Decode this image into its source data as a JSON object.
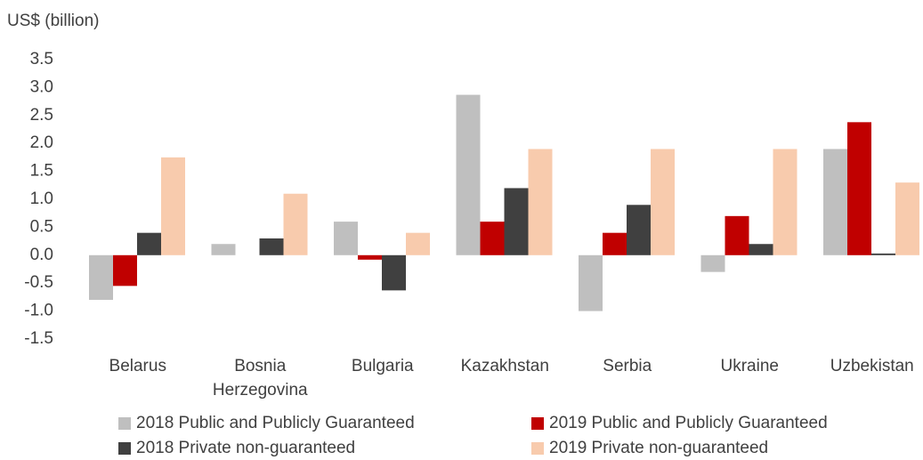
{
  "chart_data": {
    "type": "bar",
    "y_label": "US$ (billion)",
    "categories": [
      "Belarus",
      "Bosnia Herzegovina",
      "Bulgaria",
      "Kazakhstan",
      "Serbia",
      "Ukraine",
      "Uzbekistan"
    ],
    "series": [
      {
        "name": "2018 Public and Publicly Guaranteed",
        "color": "#bfbfbf",
        "values": [
          -0.8,
          0.2,
          0.6,
          2.87,
          -1.0,
          -0.3,
          1.9
        ]
      },
      {
        "name": "2019 Public and Publicly Guaranteed",
        "color": "#c00000",
        "values": [
          -0.55,
          0,
          -0.08,
          0.6,
          0.4,
          0.7,
          2.38
        ]
      },
      {
        "name": "2018 Private non-guaranteed",
        "color": "#404040",
        "values": [
          0.4,
          0.3,
          -0.63,
          1.2,
          0.9,
          0.2,
          0.03
        ]
      },
      {
        "name": "2019 Private non-guaranteed",
        "color": "#f8cbad",
        "values": [
          1.75,
          1.1,
          0.4,
          1.9,
          1.9,
          1.9,
          1.3
        ]
      }
    ],
    "ylim": [
      -1.5,
      3.5
    ],
    "yticks": [
      {
        "value": -1.5,
        "label": "-1.5"
      },
      {
        "value": -1,
        "label": "-1.0"
      },
      {
        "value": -0.5,
        "label": "-0.5"
      },
      {
        "value": 0,
        "label": "0.0"
      },
      {
        "value": 0.5,
        "label": "0.5"
      },
      {
        "value": 1,
        "label": "1.0"
      },
      {
        "value": 1.5,
        "label": "1.5"
      },
      {
        "value": 2,
        "label": "2.0"
      },
      {
        "value": 2.5,
        "label": "2.5"
      },
      {
        "value": 3,
        "label": "3.0"
      },
      {
        "value": 3.5,
        "label": "3.5"
      }
    ],
    "grid": false,
    "legend": "bottom"
  }
}
